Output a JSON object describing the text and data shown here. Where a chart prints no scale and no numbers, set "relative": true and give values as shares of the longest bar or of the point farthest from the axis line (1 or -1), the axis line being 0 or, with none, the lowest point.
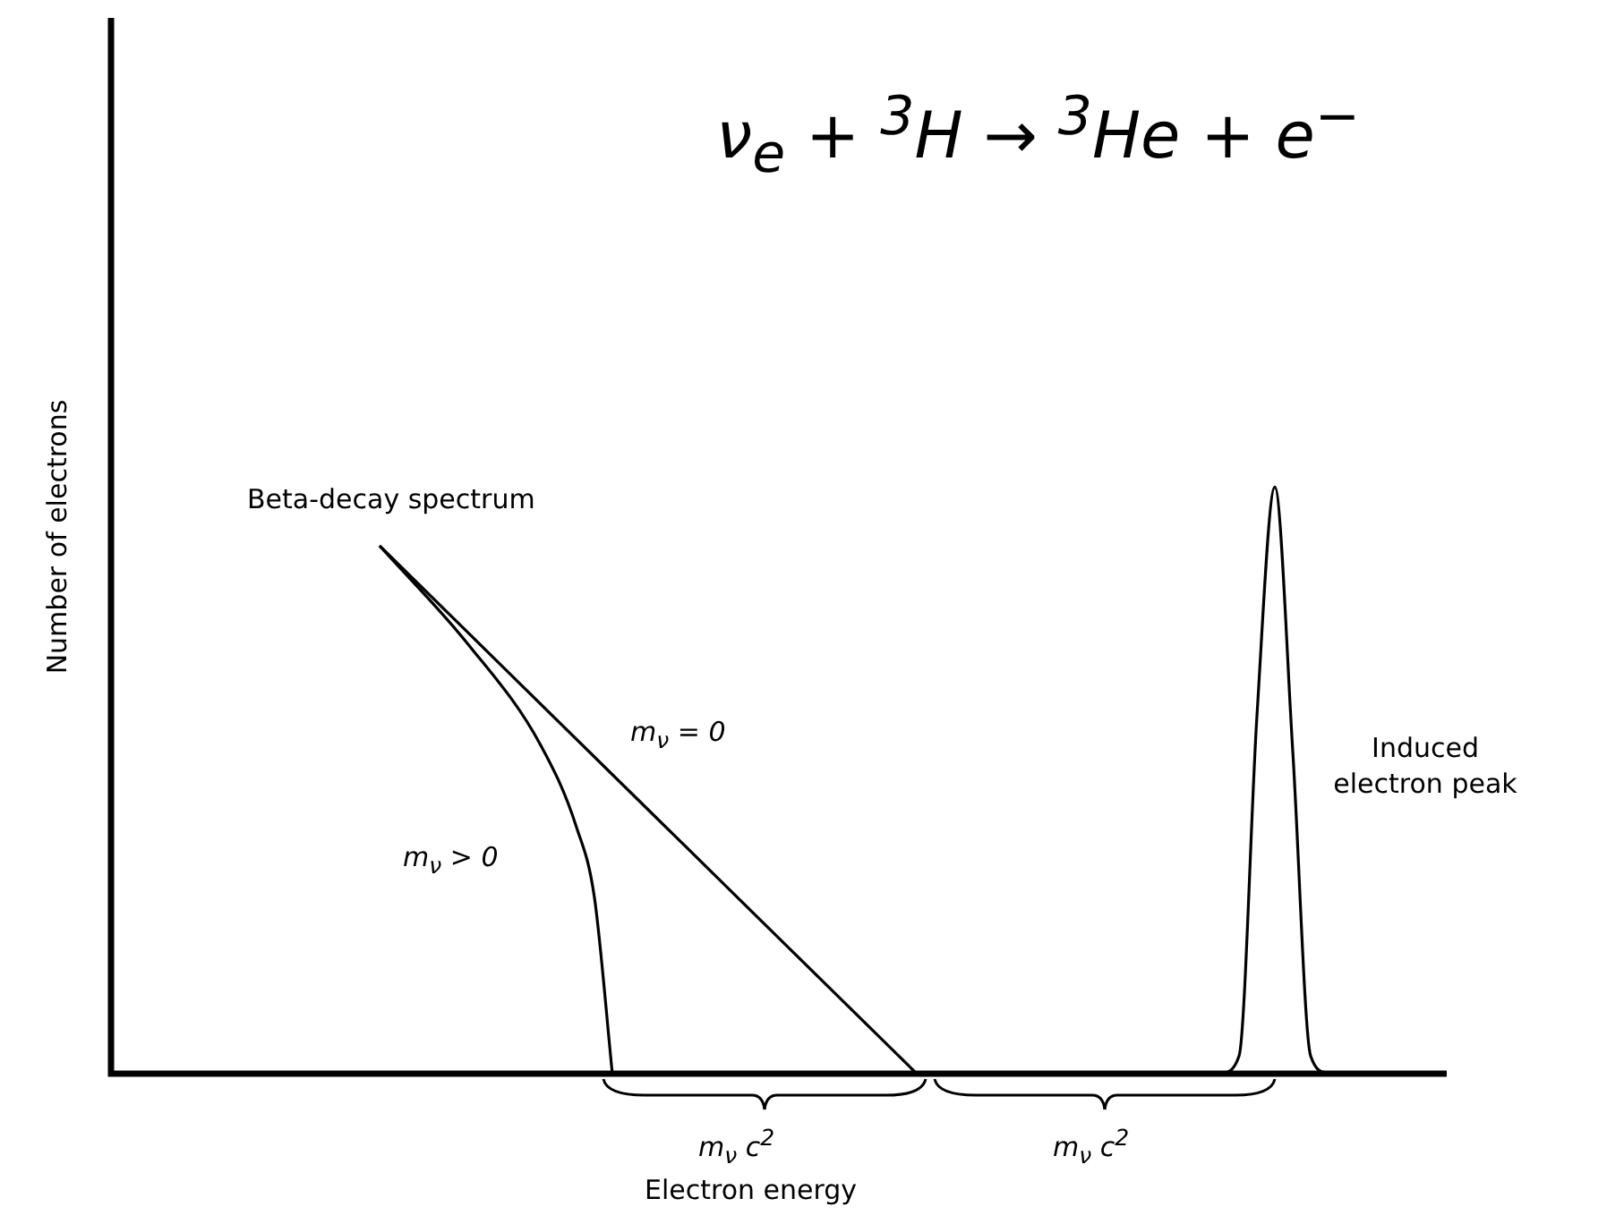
{
  "chart_data": {
    "type": "line",
    "relative": true,
    "xlabel": "Electron energy",
    "ylabel": "Number of electrons",
    "categories": [
      null,
      null,
      null,
      null,
      null,
      null,
      null,
      null,
      null,
      null,
      null,
      null,
      null,
      null,
      null,
      null,
      null,
      null,
      null,
      null,
      null,
      null,
      null,
      null,
      null,
      null,
      null,
      null,
      null,
      null,
      null,
      null,
      null,
      null,
      null,
      null,
      null,
      null,
      null,
      null,
      null,
      null,
      null,
      null,
      null,
      null,
      null,
      null,
      null,
      null,
      null,
      null,
      null,
      null,
      null,
      null,
      null,
      null,
      null,
      null,
      null,
      null,
      null,
      null,
      null,
      null,
      null,
      null,
      null,
      null,
      null,
      null,
      null,
      null,
      null,
      null
    ],
    "series": [
      {
        "color": "#000000",
        "values": [
          null,
          null,
          null,
          null,
          null,
          null,
          null,
          null,
          null,
          null,
          null,
          null,
          null,
          null,
          null,
          0.9,
          null,
          null,
          null,
          null,
          null,
          null,
          null,
          null,
          null,
          null,
          null,
          null,
          null,
          null,
          null,
          null,
          null,
          null,
          null,
          null,
          null,
          null,
          null,
          null,
          null,
          null,
          null,
          null,
          null,
          0,
          null,
          null,
          null,
          null,
          null,
          null,
          null,
          null,
          null,
          null,
          null,
          null,
          null,
          null,
          null,
          null,
          null,
          null,
          null,
          null,
          null,
          null,
          null,
          null,
          null,
          null,
          null,
          null,
          null,
          null
        ]
      },
      {
        "color": "#000000",
        "values": [
          null,
          null,
          null,
          null,
          null,
          null,
          null,
          null,
          null,
          null,
          null,
          null,
          null,
          null,
          null,
          0.9,
          null,
          null,
          null,
          null,
          0.73,
          null,
          null,
          null,
          0.56,
          null,
          0.42,
          0.3,
          0,
          null,
          null,
          null,
          null,
          null,
          null,
          null,
          null,
          null,
          null,
          null,
          null,
          null,
          null,
          null,
          null,
          null,
          null,
          null,
          null,
          null,
          null,
          null,
          null,
          null,
          null,
          null,
          null,
          null,
          null,
          null,
          null,
          null,
          null,
          null,
          null,
          null,
          null,
          null,
          null,
          null,
          null,
          null,
          null,
          null,
          null,
          null
        ]
      },
      {
        "color": "#000000",
        "values": [
          null,
          null,
          null,
          null,
          null,
          null,
          null,
          null,
          null,
          null,
          null,
          null,
          null,
          null,
          null,
          null,
          null,
          null,
          null,
          null,
          null,
          null,
          null,
          null,
          null,
          null,
          null,
          null,
          null,
          null,
          null,
          null,
          null,
          null,
          null,
          null,
          null,
          null,
          null,
          null,
          null,
          null,
          null,
          null,
          null,
          null,
          null,
          null,
          null,
          null,
          null,
          null,
          null,
          null,
          null,
          null,
          null,
          null,
          null,
          null,
          null,
          null,
          0,
          0.03,
          0.61,
          1,
          0.55,
          0.03,
          0,
          null,
          null,
          null,
          null,
          null,
          null,
          null
        ]
      }
    ],
    "annotations": [
      "ν$_{e}$ + $^{3}$H → $^{3}$He + e$^{−}$",
      "Beta-decay spectrum",
      "m$_{ν}$ = 0",
      "m$_{ν}$ > 0",
      "Induced electron peak",
      "m$_{ν}$ c$^{2}$",
      "m$_{ν}$ c$^{2}$"
    ]
  }
}
